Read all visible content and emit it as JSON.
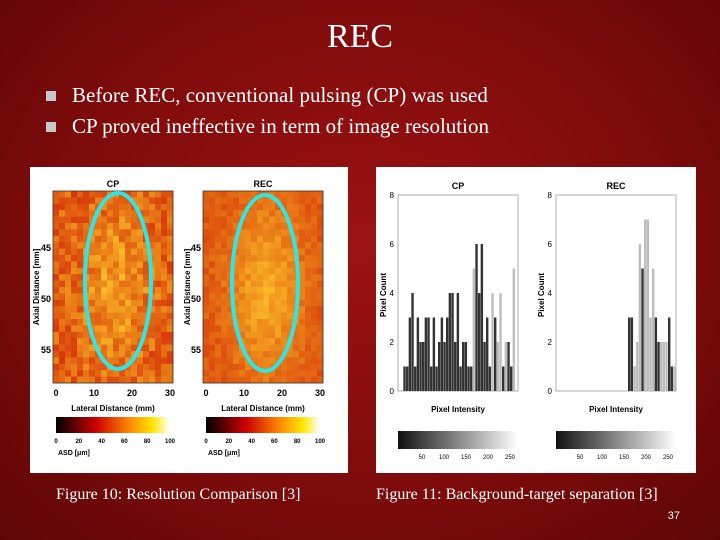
{
  "slide": {
    "title": "REC",
    "bullets": [
      "Before REC, conventional pulsing (CP) was used",
      "CP proved ineffective in term of image resolution"
    ],
    "page_number": "37"
  },
  "figure10": {
    "caption": "Figure 10: Resolution Comparison [3]",
    "panel_left_title": "CP",
    "panel_right_title": "REC",
    "y_label": "Axial Distance [mm]",
    "x_label": "Lateral Distance (mm)",
    "y_ticks": [
      "45",
      "50",
      "55"
    ],
    "x_ticks": [
      "0",
      "10",
      "20",
      "30"
    ],
    "colorbar_ticks": [
      "0",
      "20",
      "40",
      "60",
      "80",
      "100"
    ],
    "colorbar_label": "ASD [μm]"
  },
  "figure11": {
    "caption": "Figure 11:  Background-target separation [3]",
    "panel_left_title": "CP",
    "panel_right_title": "REC",
    "y_label": "Pixel Count",
    "x_label": "Pixel Intensity",
    "y_ticks": [
      "0",
      "2",
      "4",
      "6",
      "8"
    ],
    "colorbar_ticks": [
      "50",
      "100",
      "150",
      "200",
      "250"
    ]
  },
  "colors": {
    "background": "#8b0e0e",
    "bullet": "#c8c8c8",
    "ellipse": "#2ee6e6",
    "heatmap_low": "#d81b0c",
    "heatmap_high": "#f6c23a"
  }
}
